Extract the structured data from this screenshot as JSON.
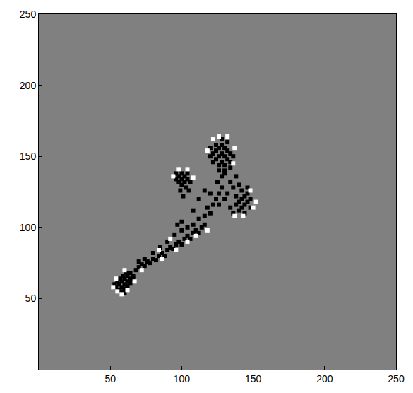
{
  "chart_data": {
    "type": "scatter",
    "xlim": [
      0,
      250
    ],
    "xticks": [
      50,
      100,
      150,
      200,
      250
    ],
    "ylim": [
      0,
      250
    ],
    "yticks": [
      50,
      100,
      150,
      200,
      250
    ],
    "grid": false,
    "marker": "square",
    "series": [
      {
        "color": "#000000",
        "x": [
          54,
          56,
          58,
          60,
          62,
          56,
          58,
          60,
          62,
          64,
          58,
          60,
          62,
          64,
          66,
          55,
          57,
          59,
          61,
          64,
          66,
          53,
          60,
          68,
          70,
          72,
          74,
          76,
          78,
          80,
          82,
          84,
          86,
          88,
          90,
          92,
          94,
          96,
          98,
          100,
          102,
          104,
          106,
          108,
          110,
          112,
          114,
          116,
          70,
          74,
          80,
          85,
          90,
          95,
          100,
          97,
          100,
          104,
          108,
          112,
          116,
          120,
          118,
          122,
          124,
          126,
          128,
          125,
          128,
          130,
          96,
          98,
          100,
          102,
          104,
          98,
          100,
          102,
          104,
          106,
          96,
          100,
          103,
          99,
          101,
          105,
          120,
          122,
          124,
          126,
          128,
          130,
          132,
          134,
          122,
          124,
          126,
          128,
          130,
          132,
          134,
          126,
          128,
          130,
          124,
          128,
          132,
          136,
          126,
          130,
          134,
          120,
          140,
          142,
          144,
          146,
          148,
          142,
          144,
          146,
          140,
          138,
          144,
          148,
          142,
          138,
          136,
          134,
          146,
          140,
          134,
          136,
          138,
          132,
          130,
          126,
          116,
          112,
          108,
          120
        ],
        "y": [
          58,
          60,
          62,
          64,
          66,
          56,
          58,
          60,
          62,
          64,
          55,
          57,
          59,
          61,
          64,
          62,
          64,
          66,
          68,
          68,
          66,
          60,
          54,
          70,
          72,
          74,
          73,
          76,
          75,
          78,
          77,
          80,
          82,
          80,
          84,
          86,
          85,
          88,
          90,
          88,
          92,
          94,
          92,
          96,
          98,
          96,
          100,
          102,
          76,
          78,
          82,
          86,
          90,
          95,
          98,
          102,
          104,
          100,
          102,
          106,
          108,
          110,
          114,
          116,
          120,
          124,
          128,
          132,
          136,
          140,
          134,
          136,
          138,
          136,
          134,
          132,
          130,
          132,
          138,
          132,
          138,
          134,
          128,
          126,
          122,
          126,
          150,
          152,
          154,
          156,
          158,
          156,
          154,
          152,
          146,
          148,
          150,
          152,
          150,
          148,
          146,
          144,
          146,
          144,
          158,
          162,
          160,
          150,
          140,
          138,
          142,
          156,
          112,
          114,
          116,
          118,
          120,
          120,
          122,
          124,
          118,
          116,
          110,
          114,
          126,
          122,
          110,
          114,
          128,
          130,
          132,
          128,
          136,
          124,
          120,
          116,
          126,
          120,
          112,
          124
        ]
      },
      {
        "color": "#ffffff",
        "x": [
          52,
          55,
          58,
          62,
          67,
          60,
          54,
          72,
          86,
          96,
          104,
          110,
          92,
          84,
          118,
          94,
          98,
          104,
          108,
          122,
          126,
          132,
          118,
          137,
          136,
          137,
          150,
          148,
          143,
          152
        ],
        "y": [
          58,
          55,
          53,
          56,
          62,
          70,
          64,
          70,
          78,
          84,
          90,
          94,
          92,
          84,
          98,
          136,
          141,
          141,
          135,
          162,
          164,
          164,
          154,
          156,
          145,
          108,
          114,
          126,
          108,
          118
        ]
      }
    ]
  }
}
